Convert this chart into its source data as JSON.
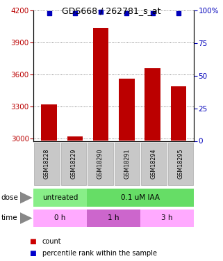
{
  "title": "GDS668 / 262781_s_at",
  "samples": [
    "GSM18228",
    "GSM18229",
    "GSM18290",
    "GSM18291",
    "GSM18294",
    "GSM18295"
  ],
  "counts": [
    3320,
    3020,
    4040,
    3560,
    3660,
    3490
  ],
  "percentiles": [
    98,
    98,
    99,
    98,
    98,
    98
  ],
  "ylim_left": [
    2980,
    4200
  ],
  "yticks_left": [
    3000,
    3300,
    3600,
    3900,
    4200
  ],
  "ylim_right": [
    0,
    100
  ],
  "yticks_right": [
    0,
    25,
    50,
    75,
    100
  ],
  "bar_color": "#bb0000",
  "dot_color": "#0000bb",
  "dose_untreated_color": "#88ee88",
  "dose_treated_color": "#66dd66",
  "time_0h_color": "#ffaaff",
  "time_1h_color": "#cc66cc",
  "time_3h_color": "#ffaaff",
  "sample_bg": "#c8c8c8",
  "grid_color": "#555555",
  "legend_red": "#cc0000",
  "legend_blue": "#0000cc"
}
